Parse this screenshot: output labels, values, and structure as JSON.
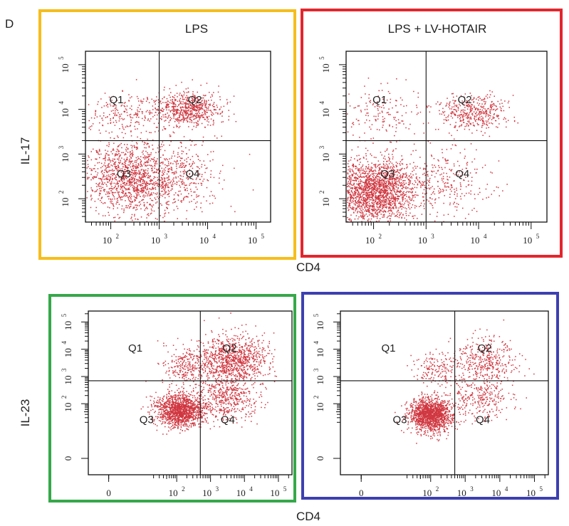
{
  "panel_letter": "D",
  "column_titles": {
    "left": "LPS",
    "right": "LPS + LV-HOTAIR"
  },
  "x_axis_label": "CD4",
  "y_axis_labels": {
    "top": "IL-17",
    "bottom": "IL-23"
  },
  "frame_colors": {
    "lps": "#f6bd1b",
    "lps_lv": "#e3262d",
    "il23_a": "#36a84a",
    "il23_b": "#3d40b0"
  },
  "dot_color": "#c8141e",
  "chart_data": [
    {
      "type": "scatter",
      "title": "LPS",
      "xlabel": "CD4",
      "ylabel": "IL-17",
      "x_scale": "log",
      "y_scale": "log",
      "xlim": [
        30,
        200000
      ],
      "ylim": [
        30,
        200000
      ],
      "x_ticks": [
        "10^2",
        "10^3",
        "10^4",
        "10^5"
      ],
      "y_ticks": [
        "10^2",
        "10^3",
        "10^4",
        "10^5"
      ],
      "quadrant_gate": {
        "x": 1000,
        "y": 2000
      },
      "quadrant_labels": [
        "Q1",
        "Q2",
        "Q3",
        "Q4"
      ],
      "clusters": [
        {
          "name": "Q3",
          "center": [
            250,
            300
          ],
          "spread_decades": [
            0.45,
            0.4
          ],
          "points": 1300
        },
        {
          "name": "Q2",
          "center": [
            4000,
            10000
          ],
          "spread_decades": [
            0.35,
            0.2
          ],
          "points": 650
        },
        {
          "name": "Q1",
          "center": [
            200,
            8000
          ],
          "spread_decades": [
            0.4,
            0.25
          ],
          "points": 220
        },
        {
          "name": "Q4",
          "center": [
            3000,
            300
          ],
          "spread_decades": [
            0.4,
            0.4
          ],
          "points": 320
        }
      ]
    },
    {
      "type": "scatter",
      "title": "LPS + LV-HOTAIR",
      "xlabel": "CD4",
      "ylabel": "IL-17",
      "x_scale": "log",
      "y_scale": "log",
      "xlim": [
        30,
        200000
      ],
      "ylim": [
        30,
        200000
      ],
      "x_ticks": [
        "10^2",
        "10^3",
        "10^4",
        "10^5"
      ],
      "y_ticks": [
        "10^2",
        "10^3",
        "10^4",
        "10^5"
      ],
      "quadrant_gate": {
        "x": 1000,
        "y": 2000
      },
      "quadrant_labels": [
        "Q1",
        "Q2",
        "Q3",
        "Q4"
      ],
      "clusters": [
        {
          "name": "Q3",
          "center": [
            100,
            150
          ],
          "spread_decades": [
            0.4,
            0.35
          ],
          "points": 2000
        },
        {
          "name": "Q2",
          "center": [
            8000,
            9000
          ],
          "spread_decades": [
            0.3,
            0.2
          ],
          "points": 420
        },
        {
          "name": "Q1",
          "center": [
            150,
            8000
          ],
          "spread_decades": [
            0.45,
            0.3
          ],
          "points": 170
        },
        {
          "name": "Q4",
          "center": [
            2500,
            250
          ],
          "spread_decades": [
            0.45,
            0.4
          ],
          "points": 280
        }
      ]
    },
    {
      "type": "scatter",
      "title": "",
      "xlabel": "CD4",
      "ylabel": "IL-23",
      "x_scale": "biexponential",
      "y_scale": "biexponential",
      "x_ticks": [
        "0",
        "10^2",
        "10^3",
        "10^4",
        "10^5"
      ],
      "y_ticks": [
        "0",
        "10^2",
        "10^3",
        "10^4",
        "10^5"
      ],
      "quadrant_gate": {
        "x": 500,
        "y": 700
      },
      "quadrant_labels": [
        "Q1",
        "Q2",
        "Q3",
        "Q4"
      ],
      "clusters": [
        {
          "name": "Q3",
          "center": [
            120,
            60
          ],
          "spread_decades": [
            0.35,
            0.3
          ],
          "points": 1400
        },
        {
          "name": "Q2",
          "center": [
            4000,
            4000
          ],
          "spread_decades": [
            0.5,
            0.45
          ],
          "points": 1000
        },
        {
          "name": "Q1",
          "center": [
            150,
            2500
          ],
          "spread_decades": [
            0.35,
            0.35
          ],
          "points": 220
        },
        {
          "name": "Q4",
          "center": [
            3000,
            150
          ],
          "spread_decades": [
            0.45,
            0.4
          ],
          "points": 450
        }
      ]
    },
    {
      "type": "scatter",
      "title": "",
      "xlabel": "CD4",
      "ylabel": "IL-23",
      "x_scale": "biexponential",
      "y_scale": "biexponential",
      "x_ticks": [
        "0",
        "10^2",
        "10^3",
        "10^4",
        "10^5"
      ],
      "y_ticks": [
        "0",
        "10^2",
        "10^3",
        "10^4",
        "10^5"
      ],
      "quadrant_gate": {
        "x": 500,
        "y": 700
      },
      "quadrant_labels": [
        "Q1",
        "Q2",
        "Q3",
        "Q4"
      ],
      "clusters": [
        {
          "name": "Q3",
          "center": [
            100,
            40
          ],
          "spread_decades": [
            0.3,
            0.3
          ],
          "points": 1500
        },
        {
          "name": "Q2",
          "center": [
            4000,
            4000
          ],
          "spread_decades": [
            0.45,
            0.45
          ],
          "points": 380
        },
        {
          "name": "Q1",
          "center": [
            150,
            2000
          ],
          "spread_decades": [
            0.35,
            0.35
          ],
          "points": 160
        },
        {
          "name": "Q4",
          "center": [
            2500,
            150
          ],
          "spread_decades": [
            0.45,
            0.4
          ],
          "points": 280
        }
      ]
    }
  ]
}
